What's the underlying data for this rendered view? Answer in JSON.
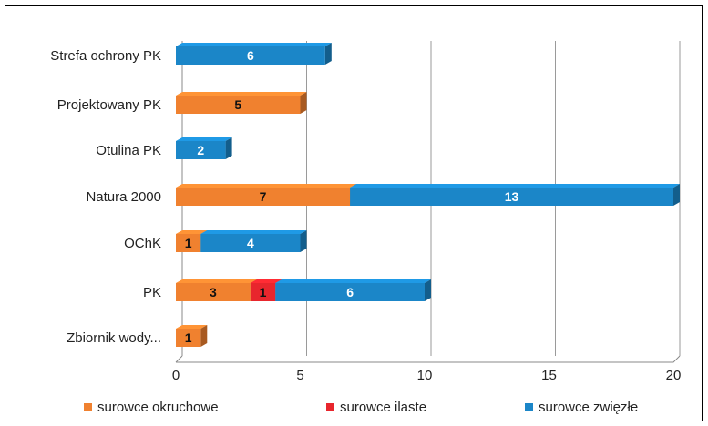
{
  "chart_data": {
    "type": "bar",
    "orientation": "horizontal",
    "stacked": true,
    "categories": [
      "Strefa ochrony PK",
      "Projektowany PK",
      "Otulina PK",
      "Natura 2000",
      "OChK",
      "PK",
      "Zbiornik wody..."
    ],
    "series": [
      {
        "name": "surowce okruchowe",
        "color": "#f0812f",
        "values": [
          0,
          5,
          0,
          7,
          1,
          3,
          1
        ]
      },
      {
        "name": "surowce ilaste",
        "color": "#e8262d",
        "values": [
          0,
          0,
          0,
          0,
          0,
          1,
          0
        ]
      },
      {
        "name": "surowce zwięzłe",
        "color": "#1b86c8",
        "values": [
          6,
          0,
          2,
          13,
          4,
          6,
          0
        ]
      }
    ],
    "xlim": [
      0,
      20
    ],
    "xticks": [
      0,
      5,
      10,
      15,
      20
    ],
    "xtick_labels": [
      "0",
      "5",
      "10",
      "15",
      "20"
    ],
    "grid": true,
    "legend_position": "bottom",
    "data_labels": true
  }
}
